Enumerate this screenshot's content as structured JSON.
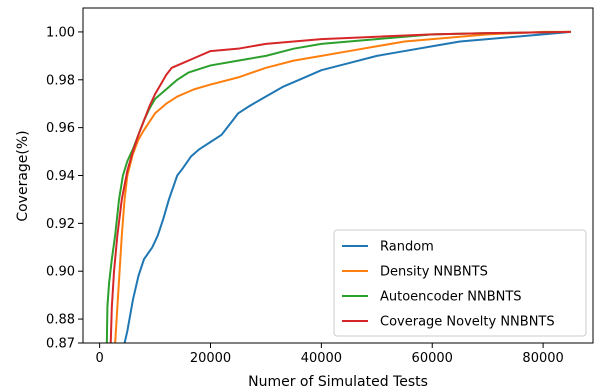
{
  "chart_data": {
    "type": "line",
    "xlabel": "Numer of Simulated Tests",
    "ylabel": "Coverage(%)",
    "xlim": [
      -3000,
      89000
    ],
    "ylim": [
      0.87,
      1.01
    ],
    "xticks": [
      0,
      20000,
      40000,
      60000,
      80000
    ],
    "xtick_labels": [
      "0",
      "20000",
      "40000",
      "60000",
      "80000"
    ],
    "yticks": [
      0.87,
      0.88,
      0.9,
      0.92,
      0.94,
      0.96,
      0.98,
      1.0
    ],
    "ytick_labels": [
      "0.87",
      "0.88",
      "0.90",
      "0.92",
      "0.94",
      "0.96",
      "0.98",
      "1.00"
    ],
    "grid": false,
    "legend_position": "lower-right",
    "series": [
      {
        "name": "Random",
        "color": "#1f77b4",
        "points": [
          [
            4500,
            0.87
          ],
          [
            5000,
            0.875
          ],
          [
            6000,
            0.888
          ],
          [
            7000,
            0.898
          ],
          [
            8000,
            0.905
          ],
          [
            9500,
            0.91
          ],
          [
            10500,
            0.915
          ],
          [
            11500,
            0.922
          ],
          [
            12500,
            0.93
          ],
          [
            14000,
            0.94
          ],
          [
            15000,
            0.943
          ],
          [
            16500,
            0.948
          ],
          [
            18000,
            0.951
          ],
          [
            20000,
            0.954
          ],
          [
            22000,
            0.957
          ],
          [
            23000,
            0.96
          ],
          [
            24000,
            0.963
          ],
          [
            25000,
            0.966
          ],
          [
            27000,
            0.969
          ],
          [
            30000,
            0.973
          ],
          [
            33000,
            0.977
          ],
          [
            36000,
            0.98
          ],
          [
            40000,
            0.984
          ],
          [
            45000,
            0.987
          ],
          [
            50000,
            0.99
          ],
          [
            55000,
            0.992
          ],
          [
            60000,
            0.994
          ],
          [
            65000,
            0.996
          ],
          [
            70000,
            0.997
          ],
          [
            75000,
            0.998
          ],
          [
            80000,
            0.999
          ],
          [
            85000,
            1.0
          ]
        ]
      },
      {
        "name": "Density NNBNTS",
        "color": "#ff7f0e",
        "points": [
          [
            2800,
            0.87
          ],
          [
            3200,
            0.885
          ],
          [
            3600,
            0.9
          ],
          [
            4000,
            0.915
          ],
          [
            4500,
            0.93
          ],
          [
            5000,
            0.94
          ],
          [
            6000,
            0.949
          ],
          [
            7000,
            0.955
          ],
          [
            8000,
            0.959
          ],
          [
            10000,
            0.966
          ],
          [
            12000,
            0.97
          ],
          [
            14000,
            0.973
          ],
          [
            17000,
            0.976
          ],
          [
            20000,
            0.978
          ],
          [
            25000,
            0.981
          ],
          [
            30000,
            0.985
          ],
          [
            35000,
            0.988
          ],
          [
            40000,
            0.99
          ],
          [
            45000,
            0.992
          ],
          [
            50000,
            0.994
          ],
          [
            55000,
            0.996
          ],
          [
            60000,
            0.997
          ],
          [
            65000,
            0.998
          ],
          [
            70000,
            0.999
          ],
          [
            75000,
            0.9995
          ],
          [
            80000,
            1.0
          ],
          [
            85000,
            1.0
          ]
        ]
      },
      {
        "name": "Autoencoder NNBNTS",
        "color": "#2ca02c",
        "points": [
          [
            1300,
            0.87
          ],
          [
            1400,
            0.885
          ],
          [
            1700,
            0.895
          ],
          [
            2200,
            0.905
          ],
          [
            2800,
            0.915
          ],
          [
            3500,
            0.93
          ],
          [
            4200,
            0.94
          ],
          [
            5000,
            0.946
          ],
          [
            6000,
            0.951
          ],
          [
            7000,
            0.957
          ],
          [
            8000,
            0.963
          ],
          [
            9000,
            0.968
          ],
          [
            10000,
            0.972
          ],
          [
            12000,
            0.976
          ],
          [
            14000,
            0.98
          ],
          [
            16000,
            0.983
          ],
          [
            20000,
            0.986
          ],
          [
            25000,
            0.988
          ],
          [
            30000,
            0.99
          ],
          [
            35000,
            0.993
          ],
          [
            40000,
            0.995
          ],
          [
            45000,
            0.996
          ],
          [
            50000,
            0.997
          ],
          [
            55000,
            0.998
          ],
          [
            60000,
            0.999
          ],
          [
            70000,
            0.9995
          ],
          [
            85000,
            1.0
          ]
        ]
      },
      {
        "name": "Coverage Novelty NNBNTS",
        "color": "#d62728",
        "points": [
          [
            2000,
            0.87
          ],
          [
            2200,
            0.885
          ],
          [
            2600,
            0.9
          ],
          [
            3200,
            0.915
          ],
          [
            4000,
            0.93
          ],
          [
            5000,
            0.942
          ],
          [
            6000,
            0.95
          ],
          [
            7000,
            0.957
          ],
          [
            8000,
            0.963
          ],
          [
            9000,
            0.969
          ],
          [
            10000,
            0.974
          ],
          [
            11000,
            0.978
          ],
          [
            12000,
            0.982
          ],
          [
            13000,
            0.985
          ],
          [
            15000,
            0.987
          ],
          [
            17000,
            0.989
          ],
          [
            20000,
            0.992
          ],
          [
            25000,
            0.993
          ],
          [
            30000,
            0.995
          ],
          [
            35000,
            0.996
          ],
          [
            40000,
            0.997
          ],
          [
            50000,
            0.998
          ],
          [
            60000,
            0.999
          ],
          [
            70000,
            0.9995
          ],
          [
            85000,
            1.0
          ]
        ]
      }
    ]
  }
}
